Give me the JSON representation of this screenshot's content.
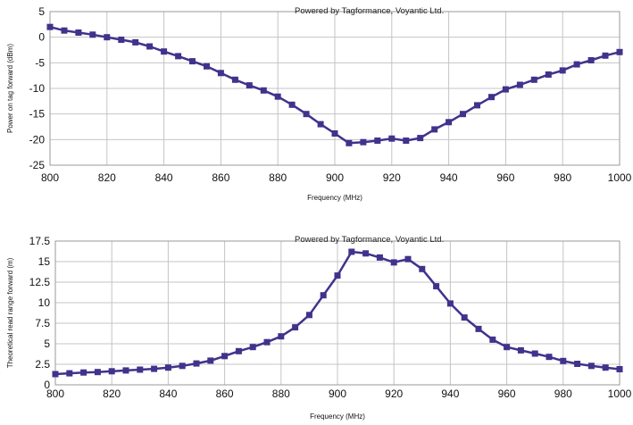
{
  "charts": [
    {
      "credit": "Powered by Tagformance, Voyantic Ltd.",
      "xlabel": "Frequency (MHz)",
      "ylabel": "Power on tag forward (dBm)"
    },
    {
      "credit": "Powered by Tagformance, Voyantic Ltd.",
      "xlabel": "Frequency (MHz)",
      "ylabel": "Theoretical read range forward (m)"
    }
  ],
  "colors": {
    "series": "#3f338c",
    "grid": "#c4c4c4",
    "frame": "#9a9a9a"
  },
  "chart_data": [
    {
      "type": "line",
      "title": "",
      "xlabel": "Frequency (MHz)",
      "ylabel": "Power on tag forward (dBm)",
      "xlim": [
        800,
        1000
      ],
      "ylim": [
        -25,
        5
      ],
      "xticks": [
        800,
        820,
        840,
        860,
        880,
        900,
        920,
        940,
        960,
        980,
        1000
      ],
      "yticks": [
        5,
        0,
        -5,
        -10,
        -15,
        -20,
        -25
      ],
      "grid": true,
      "annotation": "Powered by Tagformance, Voyantic Ltd.",
      "x": [
        800,
        805,
        810,
        815,
        820,
        825,
        830,
        835,
        840,
        845,
        850,
        855,
        860,
        865,
        870,
        875,
        880,
        885,
        890,
        895,
        900,
        905,
        910,
        915,
        920,
        925,
        930,
        935,
        940,
        945,
        950,
        955,
        960,
        965,
        970,
        975,
        980,
        985,
        990,
        995,
        1000
      ],
      "series": [
        {
          "values": [
            2.0,
            1.3,
            0.9,
            0.5,
            0.0,
            -0.5,
            -1.0,
            -1.8,
            -2.8,
            -3.7,
            -4.7,
            -5.7,
            -7.0,
            -8.3,
            -9.4,
            -10.4,
            -11.6,
            -13.2,
            -15.0,
            -17.0,
            -18.8,
            -20.7,
            -20.5,
            -20.2,
            -19.8,
            -20.2,
            -19.7,
            -18.0,
            -16.6,
            -15.0,
            -13.3,
            -11.7,
            -10.2,
            -9.3,
            -8.3,
            -7.3,
            -6.5,
            -5.3,
            -4.5,
            -3.6,
            -2.9
          ]
        }
      ]
    },
    {
      "type": "line",
      "title": "",
      "xlabel": "Frequency (MHz)",
      "ylabel": "Theoretical read range forward (m)",
      "xlim": [
        800,
        1000
      ],
      "ylim": [
        0,
        17.5
      ],
      "xticks": [
        800,
        820,
        840,
        860,
        880,
        900,
        920,
        940,
        960,
        980,
        1000
      ],
      "yticks": [
        17.5,
        15,
        12.5,
        10,
        7.5,
        5,
        2.5,
        0
      ],
      "yticklabels": [
        "17.5",
        "15",
        "12.5",
        "10",
        "7.5",
        "5",
        "2.5",
        "0"
      ],
      "grid": true,
      "annotation": "Powered by Tagformance, Voyantic Ltd.",
      "x": [
        800,
        805,
        810,
        815,
        820,
        825,
        830,
        835,
        840,
        845,
        850,
        855,
        860,
        865,
        870,
        875,
        880,
        885,
        890,
        895,
        900,
        905,
        910,
        915,
        920,
        925,
        930,
        935,
        940,
        945,
        950,
        955,
        960,
        965,
        970,
        975,
        980,
        985,
        990,
        995,
        1000
      ],
      "series": [
        {
          "values": [
            1.3,
            1.4,
            1.5,
            1.55,
            1.65,
            1.75,
            1.85,
            1.95,
            2.1,
            2.3,
            2.6,
            2.95,
            3.5,
            4.1,
            4.6,
            5.2,
            5.9,
            7.0,
            8.5,
            10.9,
            13.3,
            16.2,
            16.0,
            15.5,
            14.9,
            15.3,
            14.1,
            12.0,
            9.9,
            8.2,
            6.8,
            5.5,
            4.6,
            4.2,
            3.8,
            3.4,
            2.9,
            2.55,
            2.3,
            2.1,
            1.9
          ]
        }
      ]
    }
  ]
}
